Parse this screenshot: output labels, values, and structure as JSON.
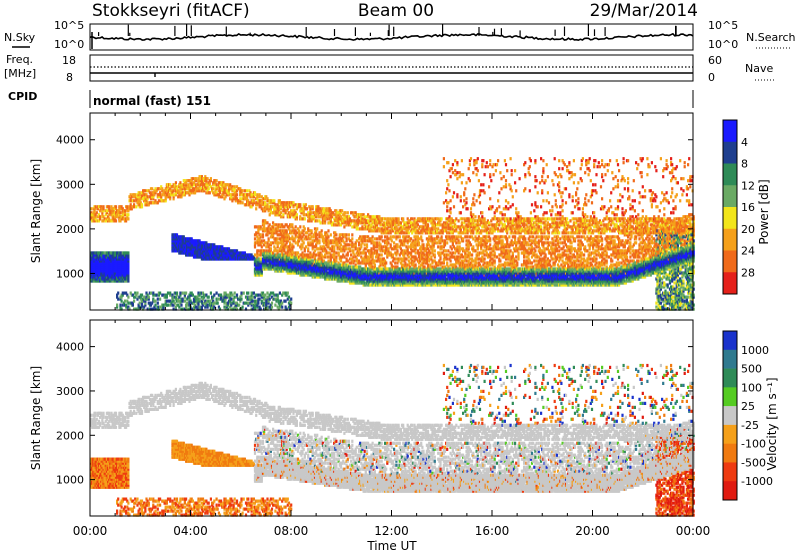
{
  "header": {
    "station": "Stokkseyri (fitACF)",
    "beam": "Beam 00",
    "date": "29/Mar/2014"
  },
  "noise_panel": {
    "left_label": "N.Sky",
    "right_label": "N.Search",
    "left_ticks": [
      "10^5",
      "10^0"
    ],
    "right_ticks": [
      "10^5",
      "10^0"
    ]
  },
  "freq_panel": {
    "left_label_1": "Freq.",
    "left_label_2": "[MHz]",
    "left_ticks": [
      "18",
      "8"
    ],
    "right_ticks": [
      "60",
      "0"
    ],
    "right_label": "Nave"
  },
  "cpid": {
    "label": "CPID",
    "value": "normal (fast) 151"
  },
  "chart_data": [
    {
      "type": "heatmap",
      "title": "",
      "ylabel": "Slant Range [km]",
      "ylim": [
        180,
        4600
      ],
      "yticks": [
        "1000",
        "2000",
        "3000",
        "4000"
      ],
      "xlabel": "",
      "x_ticks": [
        "00:00",
        "04:00",
        "08:00",
        "12:00",
        "16:00",
        "20:00",
        "00:00"
      ],
      "colorbar": {
        "label": "Power [dB]",
        "ticks": [
          "4",
          "8",
          "12",
          "16",
          "20",
          "24",
          "28"
        ],
        "colors": [
          "#1a1aff",
          "#1f3f8f",
          "#2e8b57",
          "#6aaa64",
          "#f2e51a",
          "#f5a01a",
          "#f06a1a",
          "#e5201a"
        ]
      }
    },
    {
      "type": "heatmap",
      "title": "",
      "ylabel": "Slant Range [km]",
      "ylim": [
        180,
        4600
      ],
      "yticks": [
        "1000",
        "2000",
        "3000",
        "4000"
      ],
      "xlabel": "Time UT",
      "x_ticks": [
        "00:00",
        "04:00",
        "08:00",
        "12:00",
        "16:00",
        "20:00",
        "00:00"
      ],
      "colorbar": {
        "label": "Velocity [m s⁻¹]",
        "ticks": [
          "1000",
          "500",
          "100",
          "25",
          "-25",
          "-100",
          "-500",
          "-1000"
        ],
        "colors": [
          "#1a33cc",
          "#2f7a8f",
          "#2e8b57",
          "#55cc22",
          "#c8c8c8",
          "#f5a01a",
          "#f07a10",
          "#ee3a10",
          "#e01a10"
        ]
      }
    }
  ]
}
